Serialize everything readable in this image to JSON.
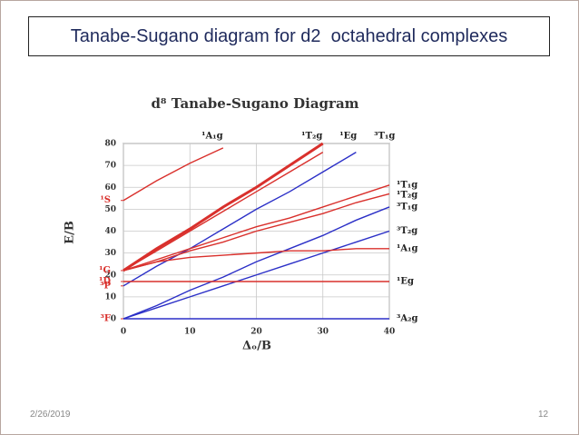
{
  "slide": {
    "title": "Tanabe-Sugano diagram for d2  octahedral complexes",
    "date": "2/26/2019",
    "page": "12"
  },
  "chart_data": {
    "type": "line",
    "title": "d⁸ Tanabe-Sugano Diagram",
    "x_label": "Δₒ/B",
    "y_label": "E/B",
    "x": [
      0,
      5,
      10,
      15,
      20,
      25,
      30,
      35,
      40
    ],
    "xlim": [
      0,
      40
    ],
    "xticks": [
      0,
      10,
      20,
      30,
      40
    ],
    "ylim": [
      0,
      80
    ],
    "yticks": [
      0,
      10,
      20,
      30,
      40,
      50,
      60,
      70,
      80
    ],
    "grid": true,
    "states": [
      {
        "label": "¹S",
        "value": 54
      },
      {
        "label": "¹G",
        "value": 22
      },
      {
        "label": "³P",
        "value": 15
      },
      {
        "label": "¹D",
        "value": 17
      },
      {
        "label": "³F",
        "value": 0
      }
    ],
    "series": [
      {
        "name": "¹A₁g",
        "color": "#d9302c",
        "values": [
          54,
          63,
          71,
          78,
          null,
          null,
          null,
          null,
          null
        ]
      },
      {
        "name": "¹T₂g",
        "color": "#d9302c",
        "line_width": 3,
        "values": [
          22,
          32,
          41,
          51,
          60,
          70,
          80,
          null,
          null
        ]
      },
      {
        "name": "¹Eg",
        "color": "#d9302c",
        "values": [
          22,
          31,
          40,
          49,
          58,
          67,
          76,
          null,
          null
        ]
      },
      {
        "name": "³T₁g",
        "color": "#2b2fc7",
        "values": [
          15,
          24,
          32,
          41,
          50,
          58,
          67,
          76,
          null
        ]
      },
      {
        "name": "¹T₁g",
        "color": "#d9302c",
        "values": [
          22,
          27,
          32,
          37,
          42,
          46,
          51,
          56,
          61
        ]
      },
      {
        "name": "¹T₂g",
        "color": "#d9302c",
        "values": [
          22,
          26,
          31,
          35,
          40,
          44,
          48,
          53,
          57
        ]
      },
      {
        "name": "³T₁g",
        "color": "#2b2fc7",
        "values": [
          0,
          6,
          13,
          19,
          26,
          32,
          38,
          45,
          51
        ]
      },
      {
        "name": "³T₂g",
        "color": "#2b2fc7",
        "values": [
          0,
          5,
          10,
          15,
          20,
          25,
          30,
          35,
          40
        ]
      },
      {
        "name": "¹A₁g",
        "color": "#d9302c",
        "values": [
          22,
          26,
          28,
          29,
          30,
          31,
          31,
          32,
          32
        ]
      },
      {
        "name": "¹Eg",
        "color": "#d9302c",
        "values": [
          17,
          17,
          17,
          17,
          17,
          17,
          17,
          17,
          17
        ]
      },
      {
        "name": "³A₂g",
        "color": "#2b2fc7",
        "values": [
          0,
          0,
          0,
          0,
          0,
          0,
          0,
          0,
          0
        ]
      }
    ]
  }
}
